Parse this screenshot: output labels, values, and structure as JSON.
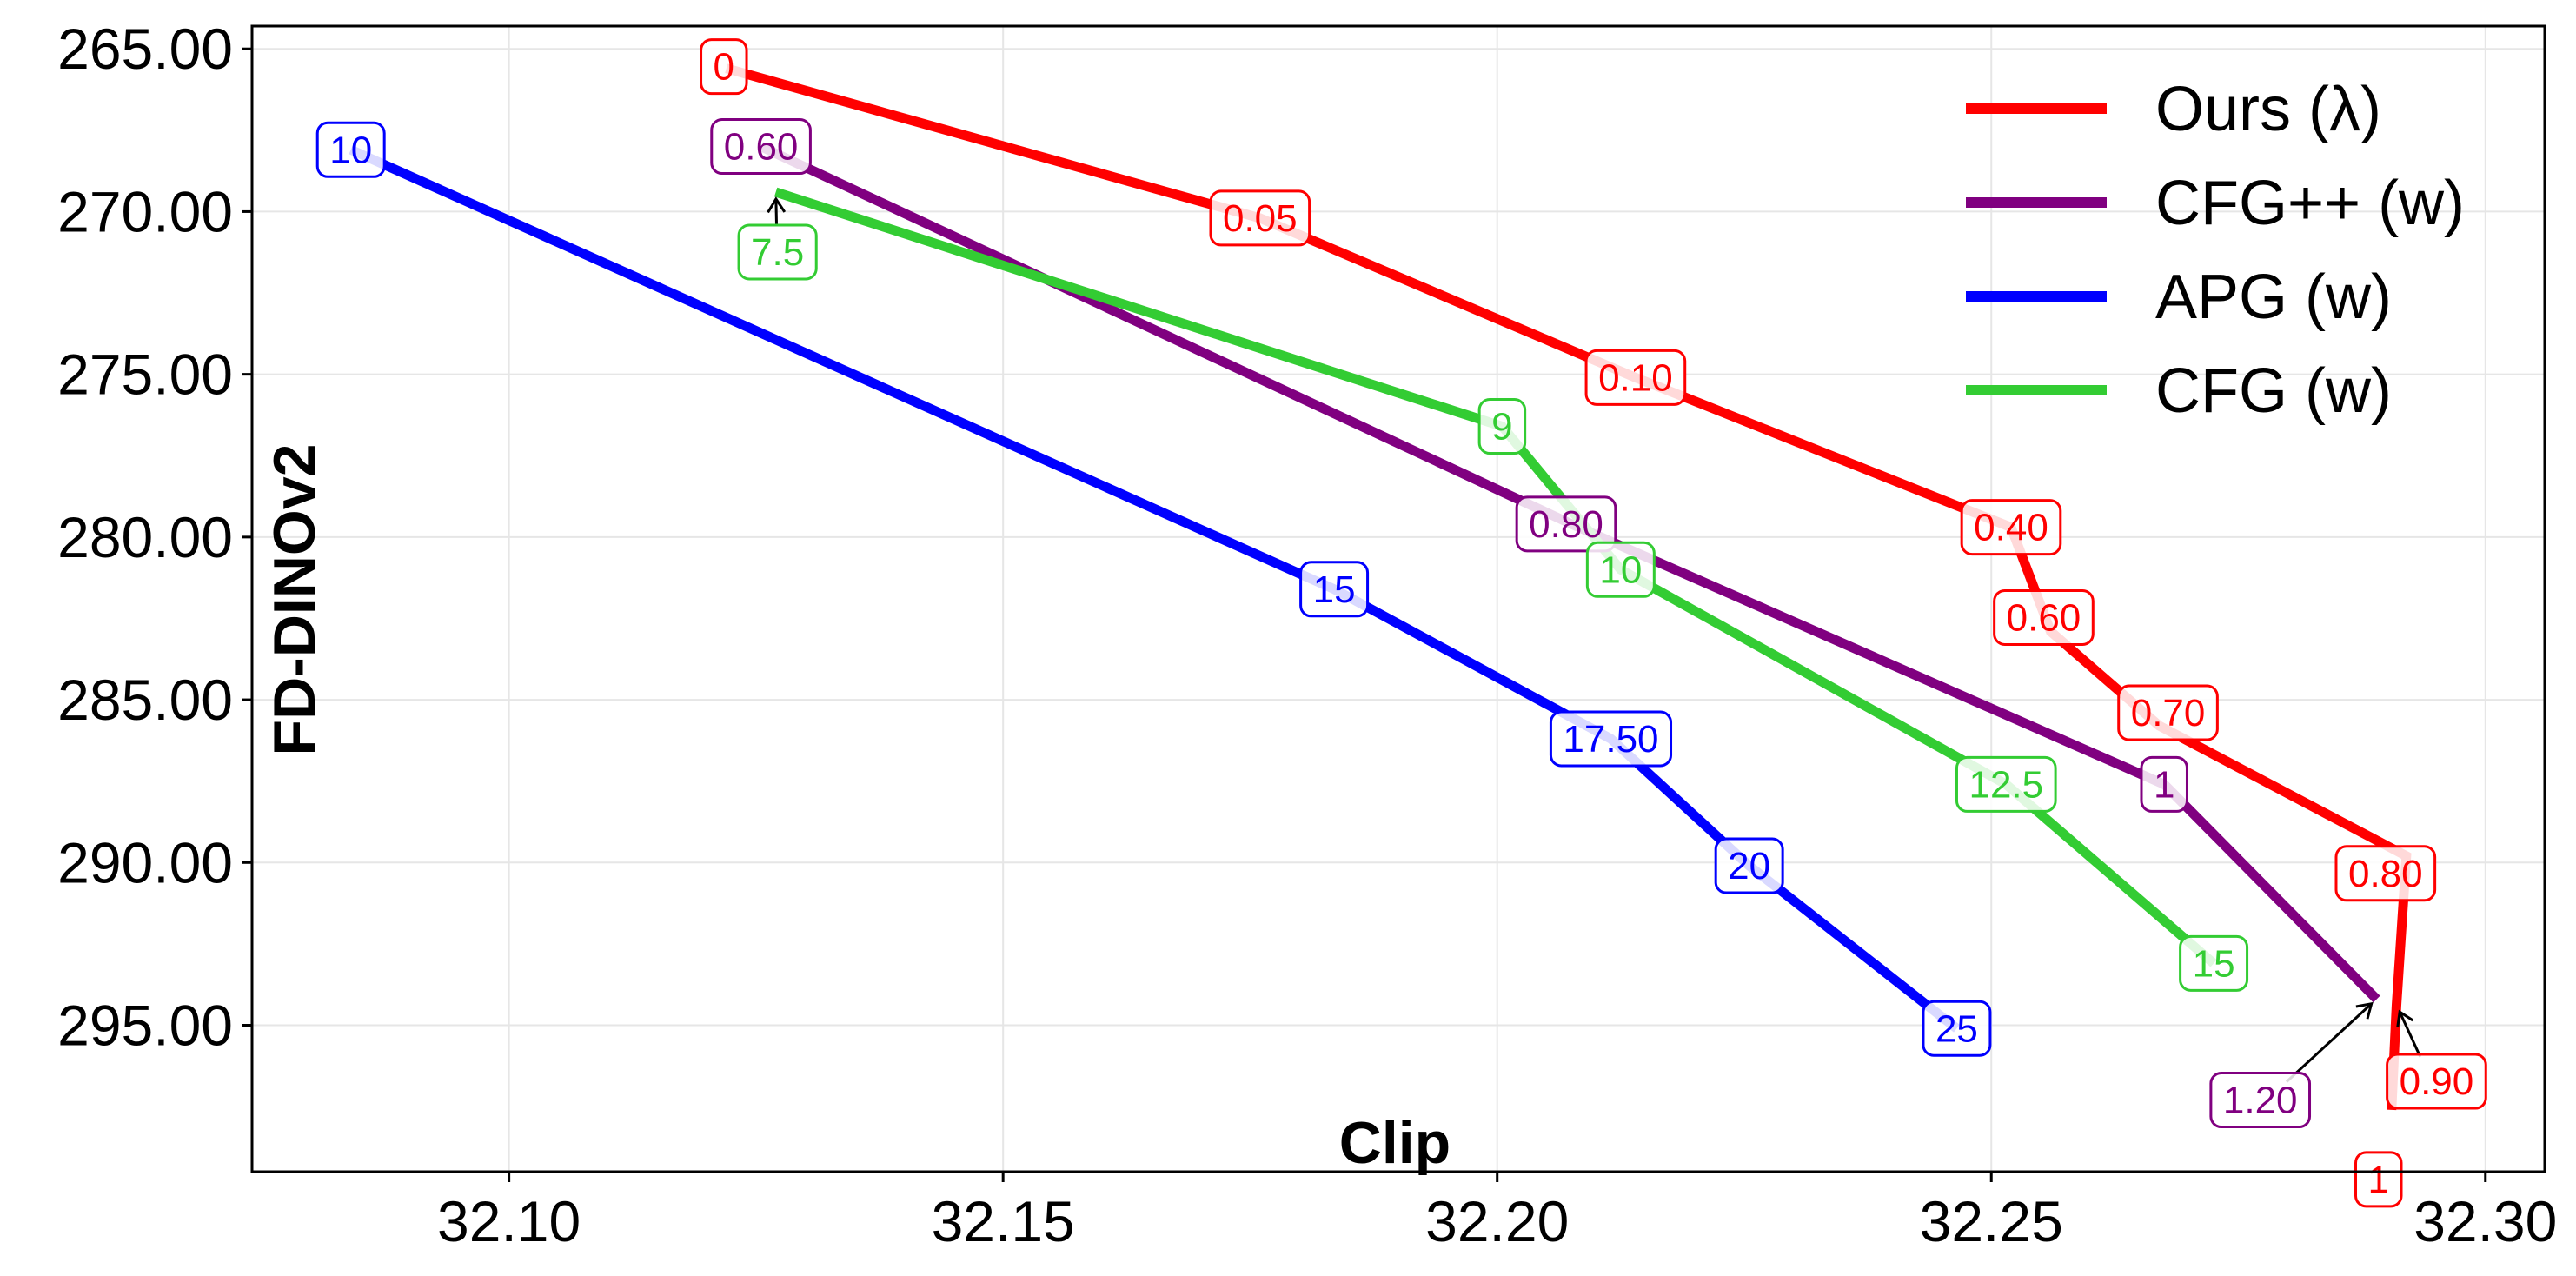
{
  "chart_data": {
    "type": "line",
    "xlabel": "Clip",
    "ylabel": "FD-DINOv2",
    "xlim": [
      32.074,
      32.306
    ],
    "ylim": [
      299.5,
      264.3
    ],
    "y_inverted": true,
    "grid": true,
    "legend_position": "top-right",
    "x_ticks": [
      "32.10",
      "32.15",
      "32.20",
      "32.25",
      "32.30"
    ],
    "y_ticks": [
      "265.00",
      "270.00",
      "275.00",
      "280.00",
      "285.00",
      "290.00",
      "295.00"
    ],
    "series": [
      {
        "name": "Ours (λ)",
        "color": "#ff0000",
        "points": [
          {
            "x": 32.122,
            "y": 265.6,
            "label": "0"
          },
          {
            "x": 32.176,
            "y": 270.2,
            "label": "0.05"
          },
          {
            "x": 32.214,
            "y": 275.1,
            "label": "0.10"
          },
          {
            "x": 32.252,
            "y": 279.7,
            "label": "0.40"
          },
          {
            "x": 32.256,
            "y": 282.9,
            "label": "0.60"
          },
          {
            "x": 32.267,
            "y": 285.8,
            "label": "0.70"
          },
          {
            "x": 32.292,
            "y": 289.8,
            "label": "0.80"
          },
          {
            "x": 32.291,
            "y": 294.4,
            "label": "0.90"
          },
          {
            "x": 32.2905,
            "y": 297.6,
            "label": "1"
          }
        ]
      },
      {
        "name": "CFG++ (w)",
        "color": "#800080",
        "points": [
          {
            "x": 32.1255,
            "y": 268.0,
            "label": "0.60"
          },
          {
            "x": 32.2075,
            "y": 279.6,
            "label": "0.80"
          },
          {
            "x": 32.2675,
            "y": 287.6,
            "label": "1"
          },
          {
            "x": 32.289,
            "y": 294.2,
            "label": "1.20"
          }
        ]
      },
      {
        "name": "APG (w)",
        "color": "#0000ff",
        "points": [
          {
            "x": 32.084,
            "y": 268.1,
            "label": "10"
          },
          {
            "x": 32.1835,
            "y": 281.6,
            "label": "15"
          },
          {
            "x": 32.2115,
            "y": 286.2,
            "label": "17.50"
          },
          {
            "x": 32.2255,
            "y": 290.1,
            "label": "20"
          },
          {
            "x": 32.2465,
            "y": 295.1,
            "label": "25"
          }
        ]
      },
      {
        "name": "CFG (w)",
        "color": "#33cc33",
        "points": [
          {
            "x": 32.127,
            "y": 269.4,
            "label": "7.5"
          },
          {
            "x": 32.2005,
            "y": 276.6,
            "label": "9"
          },
          {
            "x": 32.2125,
            "y": 281.0,
            "label": "10"
          },
          {
            "x": 32.2515,
            "y": 287.6,
            "label": "12.5"
          },
          {
            "x": 32.2725,
            "y": 293.1,
            "label": "15"
          }
        ]
      }
    ]
  }
}
